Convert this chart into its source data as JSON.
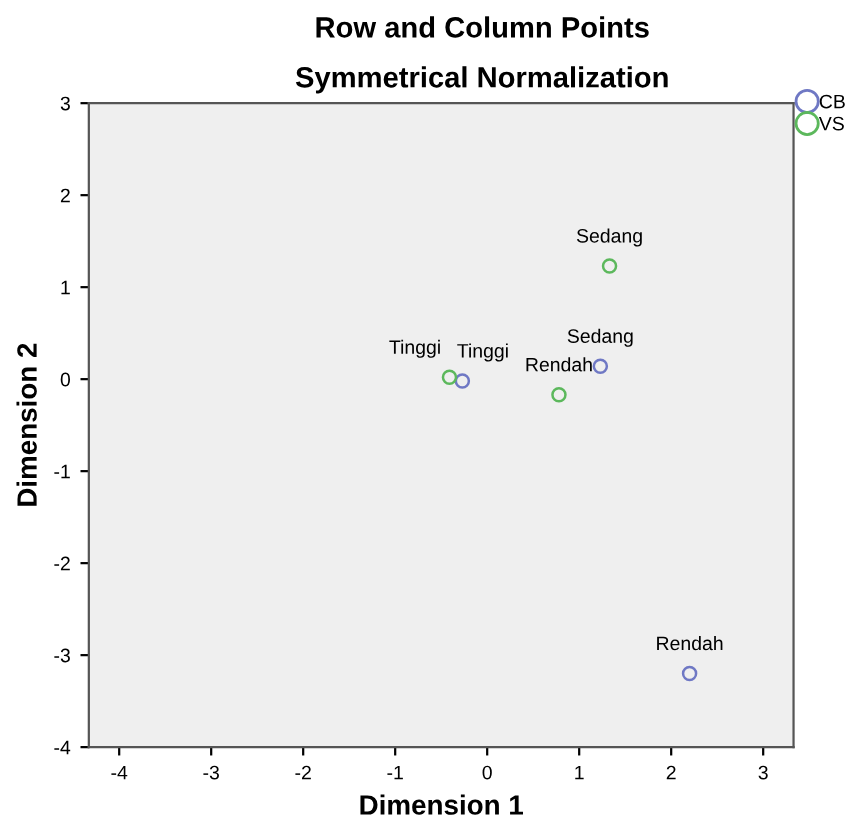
{
  "chart_data": {
    "type": "scatter",
    "title": "Row and Column Points",
    "subtitle": "Symmetrical Normalization",
    "xlabel": "Dimension 1",
    "ylabel": "Dimension 2",
    "series": [
      {
        "name": "CB",
        "color": "#6f78c4",
        "x": [
          -0.27,
          1.23,
          2.2
        ],
        "values": [
          -0.02,
          0.14,
          -3.2
        ]
      },
      {
        "name": "VS",
        "color": "#5cb85c",
        "x": [
          -0.41,
          1.33,
          0.78
        ],
        "values": [
          0.02,
          1.23,
          -0.17
        ]
      }
    ],
    "annotations": [
      {
        "text": "Tinggi",
        "x": -0.27,
        "y": -0.02
      },
      {
        "text": "Sedang",
        "x": 1.23,
        "y": 0.14
      },
      {
        "text": "Rendah",
        "x": 2.2,
        "y": -3.2
      },
      {
        "text": "Tinggi",
        "x": -0.41,
        "y": 0.02
      },
      {
        "text": "Sedang",
        "x": 1.33,
        "y": 1.23
      },
      {
        "text": "Rendah",
        "x": 0.78,
        "y": -0.17
      }
    ],
    "xlim": [
      -4.33,
      3.33
    ],
    "ylim": [
      -4,
      3
    ],
    "xticks": [
      -4,
      -3,
      -2,
      -1,
      0,
      1,
      2,
      3
    ],
    "yticks": [
      -4,
      -3,
      -2,
      -1,
      0,
      1,
      2,
      3
    ],
    "grid": false,
    "legend": "top right",
    "marker": "circle"
  }
}
